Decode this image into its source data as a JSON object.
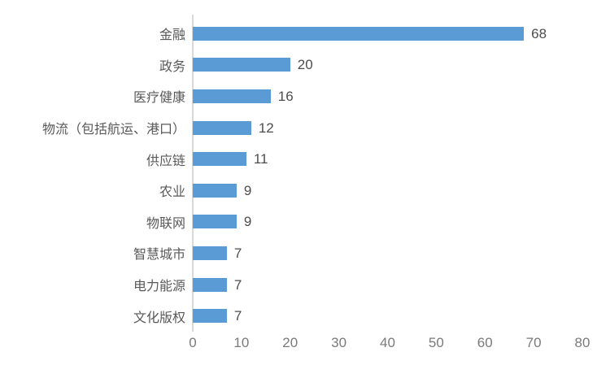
{
  "chart_data": {
    "type": "bar",
    "orientation": "horizontal",
    "title": "",
    "xlabel": "",
    "ylabel": "",
    "categories": [
      "金融",
      "政务",
      "医疗健康",
      "物流（包括航运、港口）",
      "供应链",
      "农业",
      "物联网",
      "智慧城市",
      "电力能源",
      "文化版权"
    ],
    "values": [
      68,
      20,
      16,
      12,
      11,
      9,
      9,
      7,
      7,
      7
    ],
    "data_labels": [
      "68",
      "20",
      "16",
      "12",
      "11",
      "9",
      "9",
      "7",
      "7",
      "7"
    ],
    "xlim": [
      0,
      80
    ],
    "xticks": [
      0,
      10,
      20,
      30,
      40,
      50,
      60,
      70,
      80
    ],
    "grid": false,
    "legend": false,
    "bar_color": "#5b9bd5",
    "axis_line_color": "#d9d9d9",
    "category_label_color": "#595959",
    "value_label_color": "#4d4d4d",
    "tick_label_color": "#7a7a7a",
    "background_color": "#ffffff"
  }
}
